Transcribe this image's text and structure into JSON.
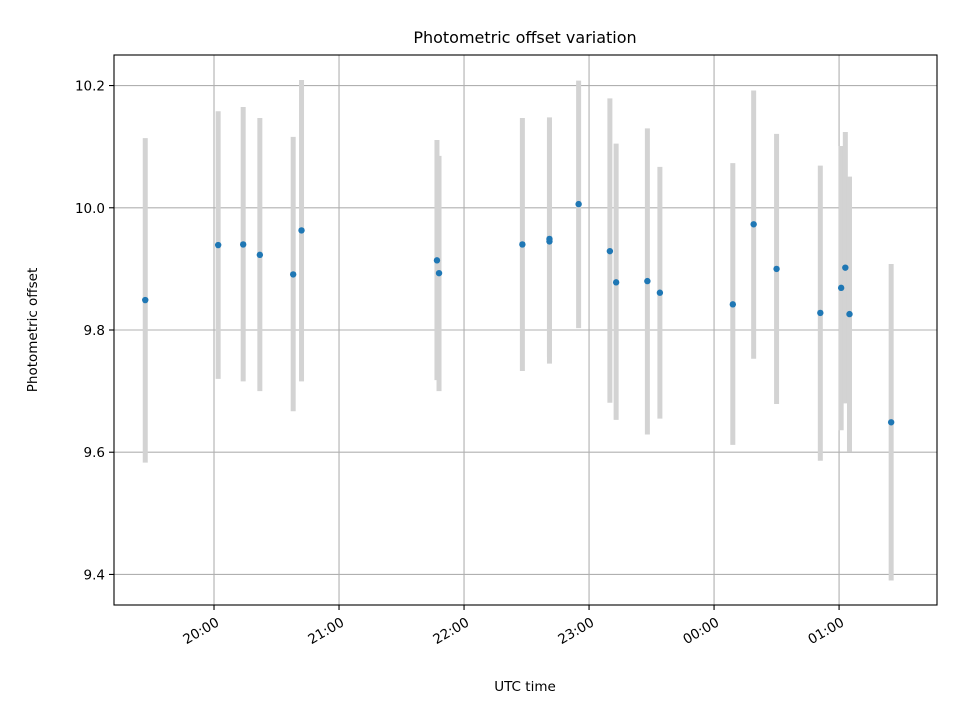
{
  "chart_data": {
    "type": "scatter",
    "title": "Photometric offset variation",
    "xlabel": "UTC time",
    "ylabel": "Photometric offset",
    "xlim": [
      "19:12",
      "01:47"
    ],
    "ylim": [
      9.35,
      10.25
    ],
    "x_ticks": [
      "20:00",
      "21:00",
      "22:00",
      "23:00",
      "00:00",
      "01:00"
    ],
    "y_ticks": [
      "9.4",
      "9.6",
      "9.8",
      "10.0",
      "10.2"
    ],
    "grid": true,
    "colors": {
      "point": "#1f77b4",
      "errorbar": "#d3d3d3",
      "grid": "#b0b0b0"
    },
    "points": [
      {
        "t": "19:27",
        "y": 9.849,
        "lo": 9.583,
        "hi": 10.114
      },
      {
        "t": "20:02",
        "y": 9.939,
        "lo": 9.72,
        "hi": 10.158
      },
      {
        "t": "20:14",
        "y": 9.94,
        "lo": 9.716,
        "hi": 10.165
      },
      {
        "t": "20:22",
        "y": 9.923,
        "lo": 9.7,
        "hi": 10.147
      },
      {
        "t": "20:38",
        "y": 9.891,
        "lo": 9.667,
        "hi": 10.116
      },
      {
        "t": "20:42",
        "y": 9.963,
        "lo": 9.716,
        "hi": 10.209
      },
      {
        "t": "21:47",
        "y": 9.914,
        "lo": 9.718,
        "hi": 10.111
      },
      {
        "t": "21:48",
        "y": 9.893,
        "lo": 9.7,
        "hi": 10.085
      },
      {
        "t": "22:28",
        "y": 9.94,
        "lo": 9.733,
        "hi": 10.147
      },
      {
        "t": "22:41",
        "y": 9.945,
        "lo": 9.745,
        "hi": 10.148
      },
      {
        "t": "22:41",
        "y": 9.949,
        "lo": 9.756,
        "hi": 10.143
      },
      {
        "t": "22:55",
        "y": 10.006,
        "lo": 9.803,
        "hi": 10.208
      },
      {
        "t": "23:10",
        "y": 9.929,
        "lo": 9.681,
        "hi": 10.179
      },
      {
        "t": "23:13",
        "y": 9.878,
        "lo": 9.653,
        "hi": 10.105
      },
      {
        "t": "23:28",
        "y": 9.88,
        "lo": 9.629,
        "hi": 10.13
      },
      {
        "t": "23:34",
        "y": 9.861,
        "lo": 9.655,
        "hi": 10.067
      },
      {
        "t": "00:09",
        "y": 9.842,
        "lo": 9.612,
        "hi": 10.073
      },
      {
        "t": "00:19",
        "y": 9.973,
        "lo": 9.753,
        "hi": 10.192
      },
      {
        "t": "00:30",
        "y": 9.9,
        "lo": 9.679,
        "hi": 10.121
      },
      {
        "t": "00:51",
        "y": 9.828,
        "lo": 9.586,
        "hi": 10.069
      },
      {
        "t": "01:01",
        "y": 9.869,
        "lo": 9.636,
        "hi": 10.101
      },
      {
        "t": "01:03",
        "y": 9.902,
        "lo": 9.68,
        "hi": 10.124
      },
      {
        "t": "01:05",
        "y": 9.826,
        "lo": 9.601,
        "hi": 10.051
      },
      {
        "t": "01:25",
        "y": 9.649,
        "lo": 9.39,
        "hi": 9.908
      }
    ]
  }
}
